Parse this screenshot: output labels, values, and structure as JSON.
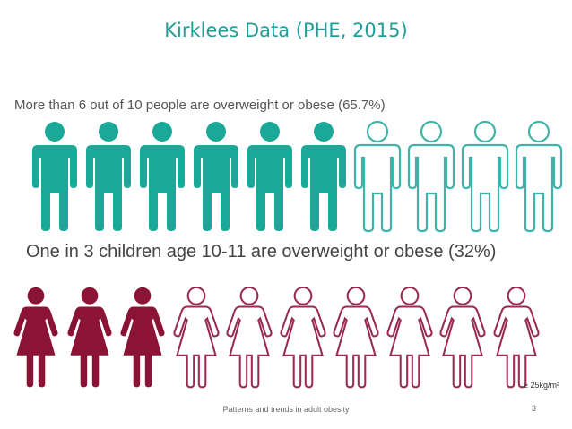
{
  "slide": {
    "title": "Kirklees Data (PHE, 2015)",
    "adult_statement": "More than 6 out of 10 people are overweight or obese (65.7%)",
    "child_statement": "One in 3 children age 10-11 are overweight or obese (32%)",
    "unit_note": "≥ 25kg/m²",
    "footer": "Patterns and trends in adult obesity",
    "slide_number": "3"
  },
  "pictograms": {
    "adults": {
      "icon": "man-icon",
      "total": 10,
      "filled": 6,
      "filled_color": "#1aa898",
      "outline_color": "#3fb3a8"
    },
    "children": {
      "icon": "woman-icon",
      "total": 10,
      "filled": 3,
      "filled_color": "#8b1436",
      "outline_color": "#9a2a52"
    }
  }
}
